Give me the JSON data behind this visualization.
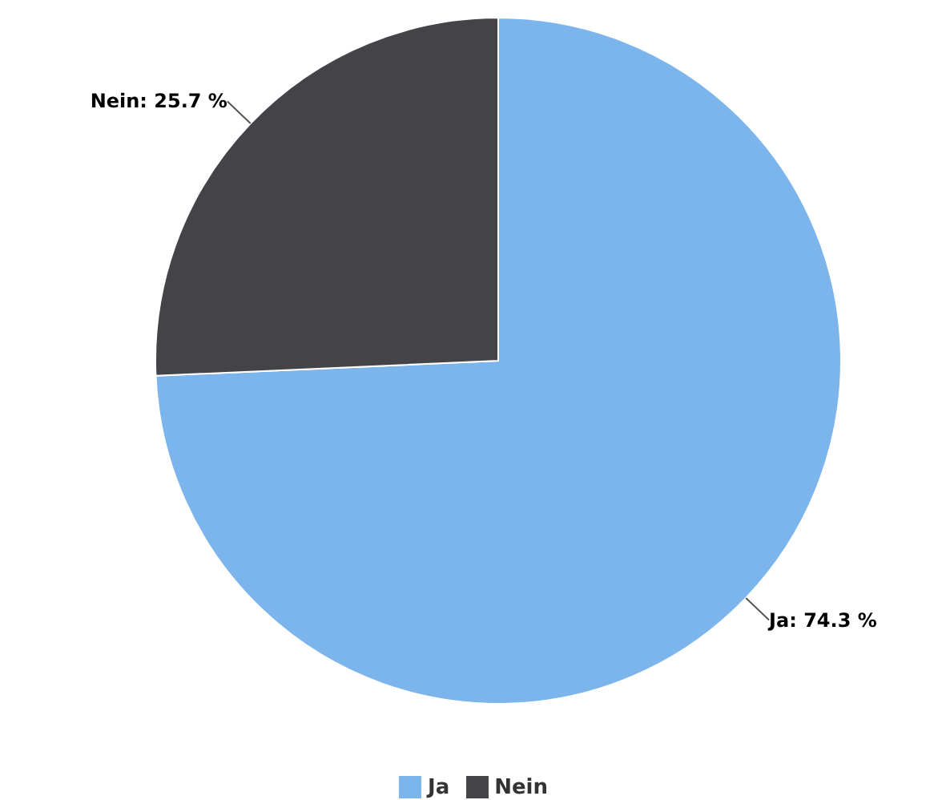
{
  "chart_data": {
    "type": "pie",
    "categories": [
      "Ja",
      "Nein"
    ],
    "values": [
      74.3,
      25.7
    ],
    "colors": [
      "#7cb5ec",
      "#434348"
    ],
    "value_labels": [
      "Ja: 74.3 %",
      "Nein: 25.7 %"
    ],
    "legend": "bottom"
  }
}
